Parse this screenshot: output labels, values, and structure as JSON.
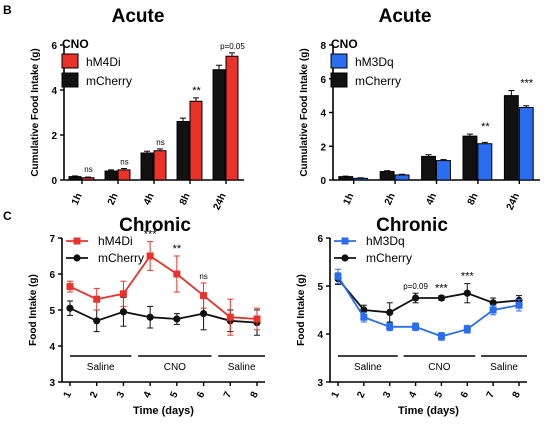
{
  "panel_labels": {
    "b": "B",
    "c": "C"
  },
  "chart_data": [
    {
      "id": "b_left",
      "type": "bar",
      "title": "Acute",
      "ylabel": "Cumulative Food Intake (g)",
      "xlabel": "",
      "ylim": [
        0,
        6
      ],
      "yticks": [
        0,
        2,
        4,
        6
      ],
      "legend_title": "CNO",
      "legend_placement": "top-left",
      "categories": [
        "1h",
        "2h",
        "4h",
        "8h",
        "24h"
      ],
      "series": [
        {
          "name": "hM4Di",
          "color": "#e8322a",
          "values": [
            0.1,
            0.45,
            1.3,
            3.5,
            5.5
          ],
          "errors": [
            0.03,
            0.06,
            0.08,
            0.15,
            0.15
          ]
        },
        {
          "name": "mCherry",
          "color": "#111111",
          "values": [
            0.15,
            0.4,
            1.2,
            2.6,
            4.9
          ],
          "errors": [
            0.03,
            0.05,
            0.08,
            0.15,
            0.2
          ]
        }
      ],
      "annotations": [
        "ns",
        "ns",
        "ns",
        "**",
        "p=0.05"
      ]
    },
    {
      "id": "b_right",
      "type": "bar",
      "title": "Acute",
      "ylabel": "Cumulative Food Intake (g)",
      "xlabel": "",
      "ylim": [
        0,
        8
      ],
      "yticks": [
        0,
        2,
        4,
        6,
        8
      ],
      "legend_title": "CNO",
      "legend_placement": "top-left",
      "categories": [
        "1h",
        "2h",
        "4h",
        "8h",
        "24h"
      ],
      "series": [
        {
          "name": "hM3Dq",
          "color": "#2a6df0",
          "values": [
            0.1,
            0.3,
            1.15,
            2.15,
            4.3
          ],
          "errors": [
            0.03,
            0.04,
            0.06,
            0.08,
            0.1
          ]
        },
        {
          "name": "mCherry",
          "color": "#111111",
          "values": [
            0.2,
            0.5,
            1.4,
            2.6,
            5.0
          ],
          "errors": [
            0.03,
            0.05,
            0.1,
            0.12,
            0.3
          ]
        }
      ],
      "annotations": [
        "",
        "",
        "",
        "**",
        "***"
      ]
    },
    {
      "id": "c_left",
      "type": "line",
      "title": "Chronic",
      "ylabel": "Food Intake (g)",
      "xlabel": "Time (days)",
      "ylim": [
        3,
        7
      ],
      "yticks": [
        3,
        4,
        5,
        6,
        7
      ],
      "x": [
        1,
        2,
        3,
        4,
        5,
        6,
        7,
        8
      ],
      "legend_placement": "top-left",
      "series": [
        {
          "name": "hM4Di",
          "color": "#e8322a",
          "marker": "square",
          "values": [
            5.65,
            5.3,
            5.45,
            6.5,
            6.0,
            5.4,
            4.8,
            4.75
          ],
          "errors": [
            0.15,
            0.3,
            0.35,
            0.4,
            0.5,
            0.35,
            0.5,
            0.3
          ]
        },
        {
          "name": "mCherry",
          "color": "#111111",
          "marker": "circle",
          "values": [
            5.05,
            4.7,
            4.95,
            4.8,
            4.75,
            4.9,
            4.7,
            4.65
          ],
          "errors": [
            0.2,
            0.3,
            0.4,
            0.3,
            0.15,
            0.45,
            0.3,
            0.35
          ]
        }
      ],
      "annotations": [
        {
          "x": 4,
          "text": "***"
        },
        {
          "x": 5,
          "text": "**"
        },
        {
          "x": 6,
          "text": "ns"
        }
      ],
      "phases": [
        {
          "label": "Saline",
          "from": 1,
          "to": 3
        },
        {
          "label": "CNO",
          "from": 4,
          "to": 6
        },
        {
          "label": "Saline",
          "from": 7,
          "to": 8
        }
      ]
    },
    {
      "id": "c_right",
      "type": "line",
      "title": "Chronic",
      "ylabel": "Food Intake (g)",
      "xlabel": "Time (days)",
      "ylim": [
        3,
        6
      ],
      "yticks": [
        3,
        4,
        5,
        6
      ],
      "x": [
        1,
        2,
        3,
        4,
        5,
        6,
        7,
        8
      ],
      "legend_placement": "top-left",
      "series": [
        {
          "name": "hM3Dq",
          "color": "#2a6df0",
          "marker": "square",
          "values": [
            5.2,
            4.35,
            4.15,
            4.15,
            3.95,
            4.1,
            4.5,
            4.6
          ],
          "errors": [
            0.15,
            0.1,
            0.08,
            0.08,
            0.08,
            0.08,
            0.1,
            0.12
          ]
        },
        {
          "name": "mCherry",
          "color": "#111111",
          "marker": "circle",
          "values": [
            5.15,
            4.5,
            4.45,
            4.75,
            4.75,
            4.85,
            4.65,
            4.7
          ],
          "errors": [
            0.12,
            0.1,
            0.2,
            0.1,
            0.05,
            0.2,
            0.1,
            0.1
          ]
        }
      ],
      "annotations": [
        {
          "x": 4,
          "text": "p=0.09"
        },
        {
          "x": 5,
          "text": "***"
        },
        {
          "x": 6,
          "text": "***"
        }
      ],
      "phases": [
        {
          "label": "Saline",
          "from": 1,
          "to": 3
        },
        {
          "label": "CNO",
          "from": 4,
          "to": 6
        },
        {
          "label": "Saline",
          "from": 7,
          "to": 8
        }
      ]
    }
  ]
}
